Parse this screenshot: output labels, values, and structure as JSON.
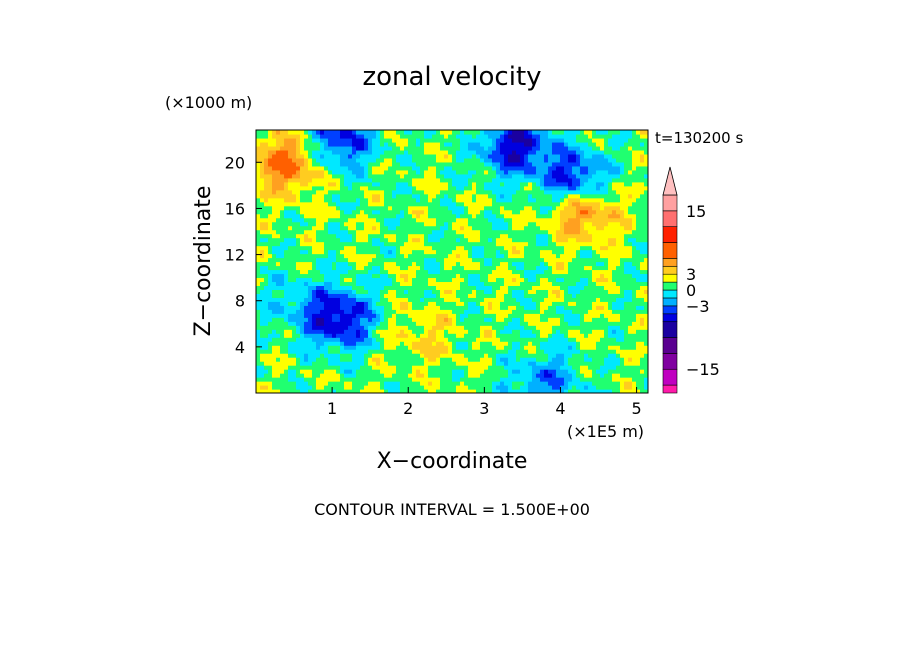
{
  "chart_data": {
    "type": "heatmap",
    "title": "zonal velocity",
    "xlabel": "X−coordinate",
    "ylabel": "Z−coordinate",
    "x_units": "(×1E5 m)",
    "y_units": "(×1000 m)",
    "time_label": "t=130200 s",
    "contour_interval_label": "CONTOUR INTERVAL = 1.500E+00",
    "xlim": [
      0,
      5.15
    ],
    "ylim": [
      0,
      22.8
    ],
    "x_ticks": [
      1,
      2,
      3,
      4,
      5
    ],
    "y_ticks": [
      4,
      8,
      12,
      16,
      20
    ],
    "x_tick_labels": [
      "1",
      "2",
      "3",
      "4",
      "5"
    ],
    "y_tick_labels": [
      "4",
      "8",
      "12",
      "16",
      "20"
    ],
    "colorbar": {
      "tick_values": [
        15,
        3,
        0,
        -3,
        -15
      ],
      "tick_labels": [
        "15",
        "3",
        "0",
        "−3",
        "−15"
      ],
      "levels": [
        -19.5,
        -18,
        -15,
        -12,
        -9,
        -6,
        -4.5,
        -3,
        -1.5,
        0,
        1.5,
        3,
        4.5,
        6,
        9,
        12,
        15,
        18,
        19.5
      ],
      "colors": [
        "#ff1aaa",
        "#c000c0",
        "#8000a0",
        "#5a0090",
        "#1a00a0",
        "#0000e0",
        "#0040ff",
        "#00b0ff",
        "#00e8ff",
        "#20ff70",
        "#ffff00",
        "#ffcc20",
        "#ffa020",
        "#ff6000",
        "#ff2000",
        "#ff7070",
        "#ffa0a0",
        "#ffc0c0"
      ],
      "extend": "max"
    },
    "approx_field_features": [
      {
        "x": 4.2,
        "z": 18.5,
        "u": -7,
        "desc": "strong westward jet upper centre-right"
      },
      {
        "x": 3.4,
        "z": 21.5,
        "u": -7,
        "desc": "westward upper region"
      },
      {
        "x": 1.1,
        "z": 22.0,
        "u": -6,
        "desc": "westward patch upper left"
      },
      {
        "x": 4.3,
        "z": 16.0,
        "u": 6,
        "desc": "eastward maximum right middle"
      },
      {
        "x": 0.4,
        "z": 20.0,
        "u": 6,
        "desc": "eastward maximum upper left"
      },
      {
        "x": 1.1,
        "z": 6.5,
        "u": -7,
        "desc": "westward eddy lower left"
      },
      {
        "x": 0.5,
        "z": 8.0,
        "u": -2,
        "desc": "weak westward flow left"
      },
      {
        "x": 2.2,
        "z": 5.0,
        "u": 2,
        "desc": "weak eastward flow lower middle"
      },
      {
        "x": 3.8,
        "z": 1.0,
        "u": -4,
        "desc": "westward near surface right"
      }
    ]
  }
}
